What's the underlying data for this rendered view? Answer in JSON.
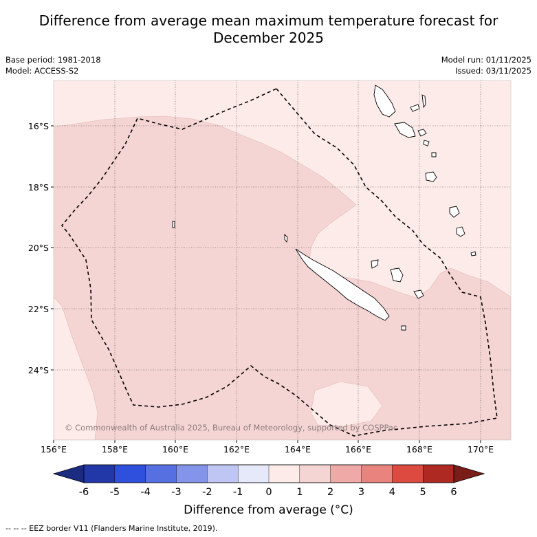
{
  "title_line1": "Difference from average mean maximum temperature forecast for",
  "title_line2": "December 2025",
  "meta_left": {
    "base_period": "Base period: 1981-2018",
    "model": "Model: ACCESS-S2"
  },
  "meta_right": {
    "model_run": "Model run: 01/11/2025",
    "issued": "Issued: 03/11/2025"
  },
  "lat_labels": [
    "16°S",
    "18°S",
    "20°S",
    "22°S",
    "24°S"
  ],
  "lon_labels": [
    "156°E",
    "158°E",
    "160°E",
    "162°E",
    "164°E",
    "166°E",
    "168°E",
    "170°E"
  ],
  "copyright": "© Commonwealth of Australia 2025, Bureau of Meteorology, supported by COSPPac",
  "colorbar": {
    "ticks": [
      "-6",
      "-5",
      "-4",
      "-3",
      "-2",
      "-1",
      "0",
      "1",
      "2",
      "3",
      "4",
      "5",
      "6"
    ],
    "colors": [
      "#2238a8",
      "#2f4fdd",
      "#5670e2",
      "#8494ea",
      "#bfc6f3",
      "#e6e9fa",
      "#fcebe8",
      "#f5d5d3",
      "#efaaa7",
      "#e8837d",
      "#dc4a40",
      "#ad2922"
    ],
    "under_color": "#1b2b80",
    "over_color": "#7a1d18",
    "label": "Difference from average (°C)"
  },
  "footer": "--  --  -- EEZ border V11 (Flanders Marine Institute, 2019).",
  "colors": {
    "light_fill": "#fcebe8",
    "main_fill": "#f5d5d3"
  }
}
